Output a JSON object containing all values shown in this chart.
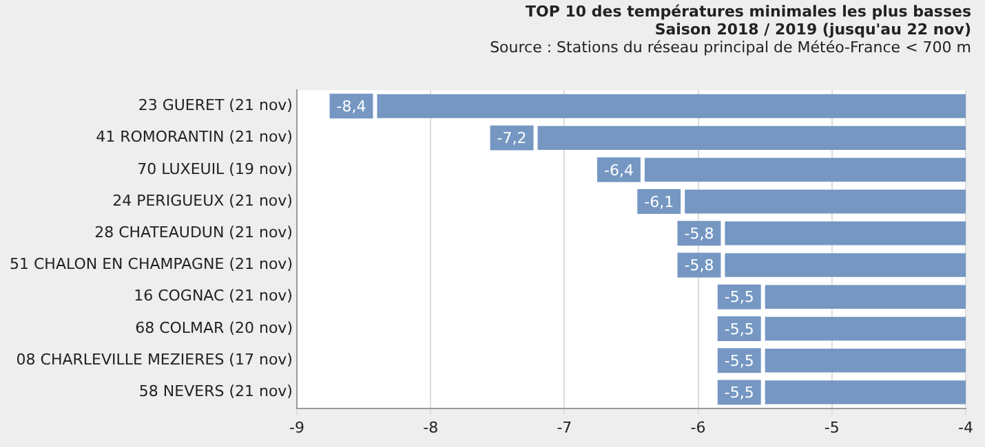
{
  "chart_data": {
    "type": "bar",
    "orientation": "horizontal",
    "title": "TOP 10 des températures minimales les plus basses",
    "subtitle": "Saison 2018 / 2019 (jusqu'au 22 nov)",
    "annotations": [
      "Source : Stations du réseau principal de Météo-France < 700 m"
    ],
    "categories": [
      "23 GUERET (21 nov)",
      "41 ROMORANTIN (21 nov)",
      "70 LUXEUIL (19 nov)",
      "24 PERIGUEUX (21 nov)",
      "28 CHATEAUDUN (21 nov)",
      "51 CHALON EN CHAMPAGNE (21 nov)",
      "16 COGNAC (21 nov)",
      "68 COLMAR (20 nov)",
      "08 CHARLEVILLE MEZIERES (17 nov)",
      "58 NEVERS (21 nov)"
    ],
    "values": [
      -8.4,
      -7.2,
      -6.4,
      -6.1,
      -5.8,
      -5.8,
      -5.5,
      -5.5,
      -5.5,
      -5.5
    ],
    "value_labels": [
      "-8,4",
      "-7,2",
      "-6,4",
      "-6,1",
      "-5,8",
      "-5,8",
      "-5,5",
      "-5,5",
      "-5,5",
      "-5,5"
    ],
    "color": "#7597c2",
    "xlim": [
      -9,
      -4
    ],
    "xticks": [
      -9,
      -8,
      -7,
      -6,
      -5,
      -4
    ],
    "grid": "x",
    "legend": false
  }
}
